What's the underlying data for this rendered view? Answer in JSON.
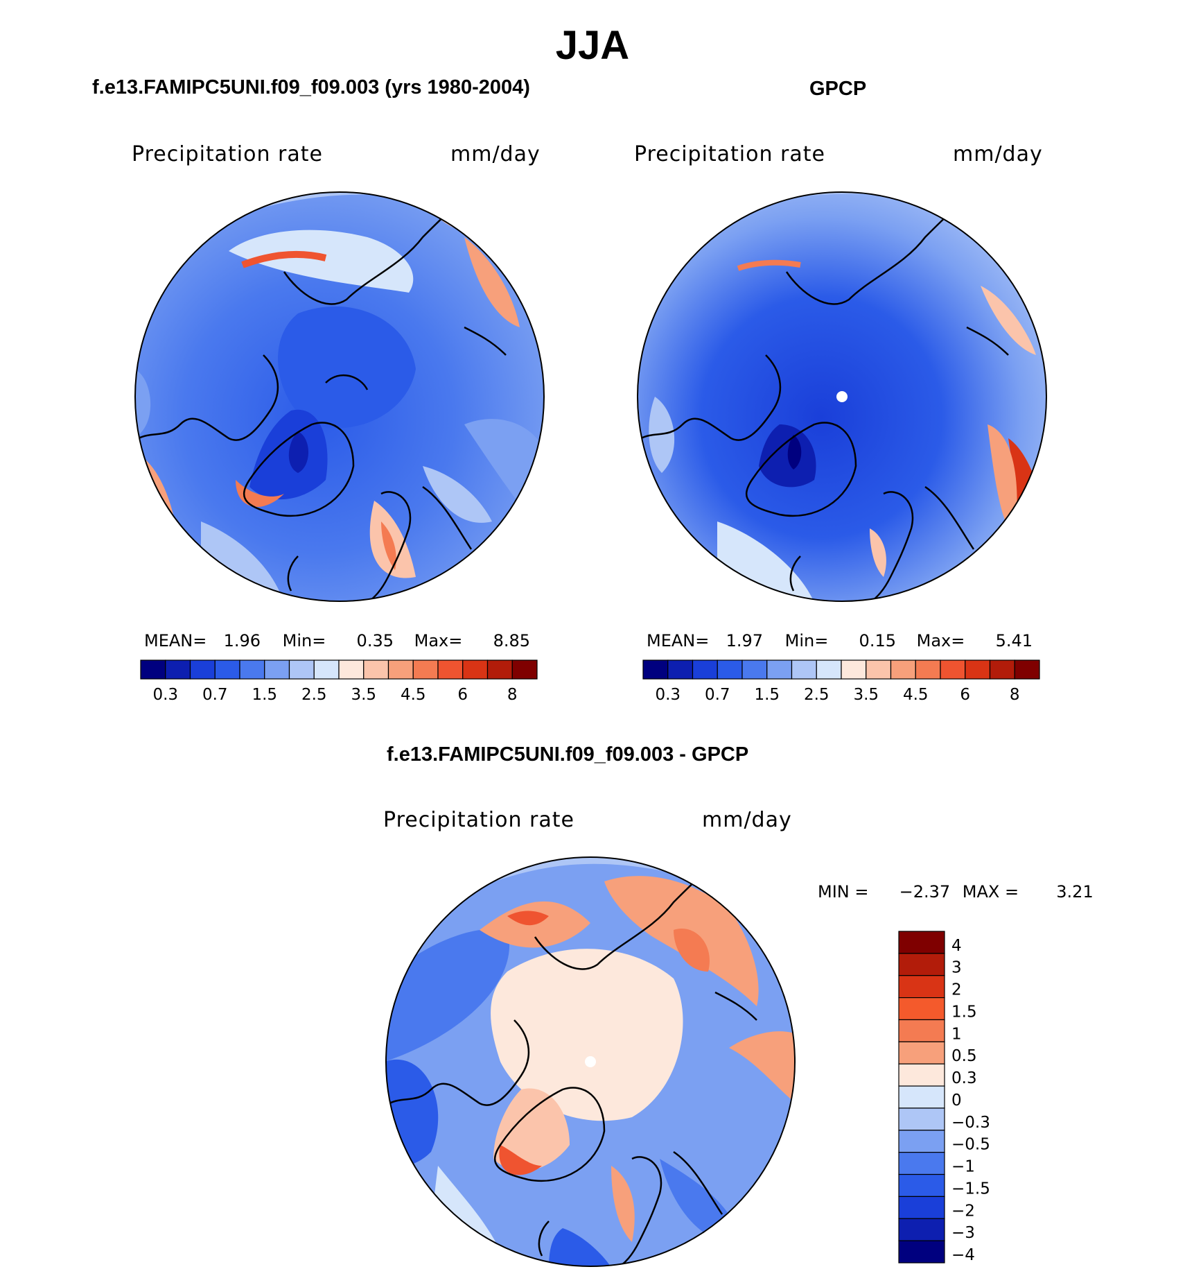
{
  "figure": {
    "title": "JJA"
  },
  "panels": [
    {
      "title": "f.e13.FAMIPC5UNI.f09_f09.003 (yrs 1980-2004)",
      "variable": "Precipitation  rate",
      "units": "mm/day",
      "stats": {
        "mean_label": "MEAN=",
        "mean": "1.96",
        "min_label": "Min=",
        "min": "0.35",
        "max_label": "Max=",
        "max": "8.85"
      }
    },
    {
      "title": "GPCP",
      "variable": "Precipitation  rate",
      "units": "mm/day",
      "stats": {
        "mean_label": "MEAN=",
        "mean": "1.97",
        "min_label": "Min=",
        "min": "0.15",
        "max_label": "Max=",
        "max": "5.41"
      }
    },
    {
      "title": "f.e13.FAMIPC5UNI.f09_f09.003 - GPCP",
      "variable": "Precipitation  rate",
      "units": "mm/day",
      "stats": {
        "min_label": "MIN =",
        "min": "−2.37",
        "max_label": "MAX =",
        "max": "3.21"
      }
    }
  ],
  "colorbars": {
    "precip": {
      "colors": [
        "#00007f",
        "#0d1fb0",
        "#1a3fd9",
        "#2b5be8",
        "#4a79ee",
        "#7ba0f2",
        "#aec6f6",
        "#d6e6fb",
        "#fde8dc",
        "#fbc4ab",
        "#f7a07b",
        "#f47b52",
        "#ef5430",
        "#d93415",
        "#b21c0a",
        "#7f0000"
      ],
      "tick_labels": [
        "0.3",
        "0.7",
        "1.5",
        "2.5",
        "3.5",
        "4.5",
        "6",
        "8"
      ]
    },
    "diff": {
      "colors": [
        "#7f0000",
        "#b21c0a",
        "#d93415",
        "#f45a2c",
        "#f47b52",
        "#f7a07b",
        "#fde8dc",
        "#d6e6fb",
        "#aec6f6",
        "#7ba0f2",
        "#4a79ee",
        "#2b5be8",
        "#1a3fd9",
        "#0d1fb0",
        "#00007f"
      ],
      "tick_labels": [
        "4",
        "3",
        "2",
        "1.5",
        "1",
        "0.5",
        "0.3",
        "0",
        "−0.3",
        "−0.5",
        "−1",
        "−1.5",
        "−2",
        "−3",
        "−4"
      ]
    }
  }
}
